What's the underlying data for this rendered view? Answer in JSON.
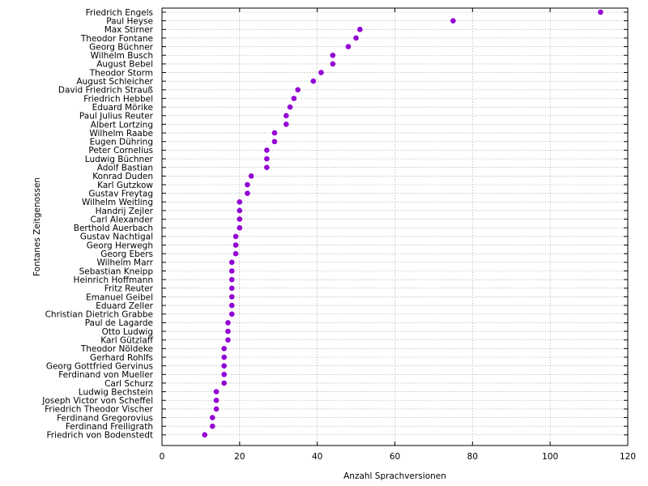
{
  "chart_data": {
    "type": "scatter",
    "xlabel": "Anzahl Sprachversionen",
    "ylabel": "Fontanes Zeitgenossen",
    "xlim": [
      0,
      120
    ],
    "xticks": [
      0,
      20,
      40,
      60,
      80,
      100,
      120
    ],
    "grid": true,
    "marker_color": "#9400d3",
    "points": [
      {
        "name": "Friedrich Engels",
        "value": 113
      },
      {
        "name": "Paul Heyse",
        "value": 75
      },
      {
        "name": "Max Stirner",
        "value": 51
      },
      {
        "name": "Theodor Fontane",
        "value": 50
      },
      {
        "name": "Georg Büchner",
        "value": 48
      },
      {
        "name": "Wilhelm Busch",
        "value": 44
      },
      {
        "name": "August Bebel",
        "value": 44
      },
      {
        "name": "Theodor Storm",
        "value": 41
      },
      {
        "name": "August Schleicher",
        "value": 39
      },
      {
        "name": "David Friedrich Strauß",
        "value": 35
      },
      {
        "name": "Friedrich Hebbel",
        "value": 34
      },
      {
        "name": "Eduard Mörike",
        "value": 33
      },
      {
        "name": "Paul Julius Reuter",
        "value": 32
      },
      {
        "name": "Albert Lortzing",
        "value": 32
      },
      {
        "name": "Wilhelm Raabe",
        "value": 29
      },
      {
        "name": "Eugen Dühring",
        "value": 29
      },
      {
        "name": "Peter Cornelius",
        "value": 27
      },
      {
        "name": "Ludwig Büchner",
        "value": 27
      },
      {
        "name": "Adolf Bastian",
        "value": 27
      },
      {
        "name": "Konrad Duden",
        "value": 23
      },
      {
        "name": "Karl Gutzkow",
        "value": 22
      },
      {
        "name": "Gustav Freytag",
        "value": 22
      },
      {
        "name": "Wilhelm Weitling",
        "value": 20
      },
      {
        "name": "Handrij Zejler",
        "value": 20
      },
      {
        "name": "Carl Alexander",
        "value": 20
      },
      {
        "name": "Berthold Auerbach",
        "value": 20
      },
      {
        "name": "Gustav Nachtigal",
        "value": 19
      },
      {
        "name": "Georg Herwegh",
        "value": 19
      },
      {
        "name": "Georg Ebers",
        "value": 19
      },
      {
        "name": "Wilhelm Marr",
        "value": 18
      },
      {
        "name": "Sebastian Kneipp",
        "value": 18
      },
      {
        "name": "Heinrich Hoffmann",
        "value": 18
      },
      {
        "name": "Fritz Reuter",
        "value": 18
      },
      {
        "name": "Emanuel Geibel",
        "value": 18
      },
      {
        "name": "Eduard Zeller",
        "value": 18
      },
      {
        "name": "Christian Dietrich Grabbe",
        "value": 18
      },
      {
        "name": "Paul de Lagarde",
        "value": 17
      },
      {
        "name": "Otto Ludwig",
        "value": 17
      },
      {
        "name": "Karl Gützlaff",
        "value": 17
      },
      {
        "name": "Theodor Nöldeke",
        "value": 16
      },
      {
        "name": "Gerhard Rohlfs",
        "value": 16
      },
      {
        "name": "Georg Gottfried Gervinus",
        "value": 16
      },
      {
        "name": "Ferdinand von Mueller",
        "value": 16
      },
      {
        "name": "Carl Schurz",
        "value": 16
      },
      {
        "name": "Ludwig Bechstein",
        "value": 14
      },
      {
        "name": "Joseph Victor von Scheffel",
        "value": 14
      },
      {
        "name": "Friedrich Theodor Vischer",
        "value": 14
      },
      {
        "name": "Ferdinand Gregorovius",
        "value": 13
      },
      {
        "name": "Ferdinand Freiligrath",
        "value": 13
      },
      {
        "name": "Friedrich von Bodenstedt",
        "value": 11
      }
    ]
  }
}
